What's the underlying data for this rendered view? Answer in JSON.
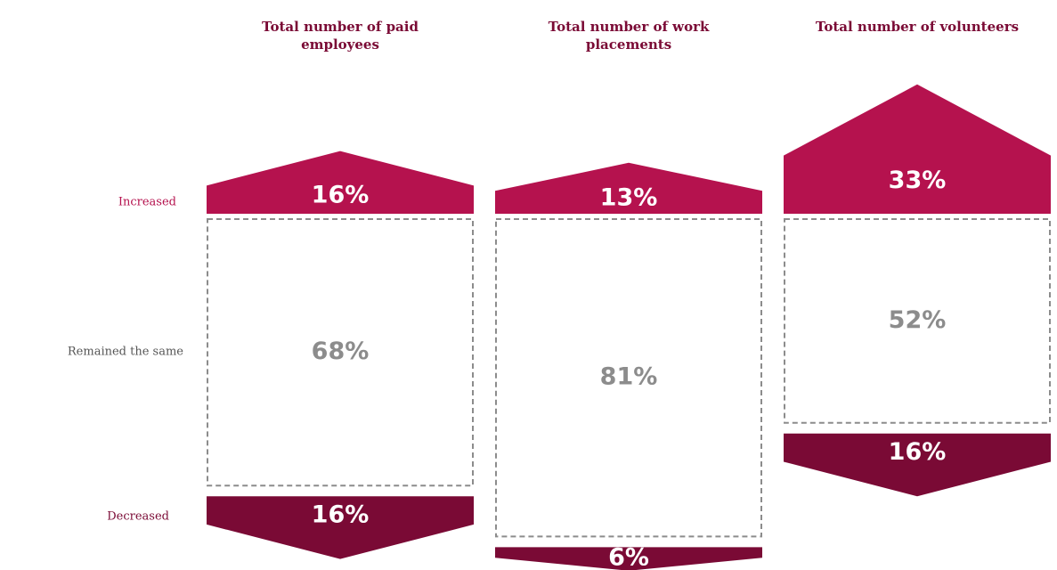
{
  "chart_data": {
    "type": "arrow-stack",
    "categories": [
      "Total number of paid employees",
      "Total number of work placements",
      "Total number of volunteers"
    ],
    "series": [
      {
        "name": "Increased",
        "color": "#b5124e",
        "values": [
          16,
          13,
          33
        ],
        "value_labels": [
          "16%",
          "13%",
          "33%"
        ]
      },
      {
        "name": "Remained the same",
        "color": "#8c8c8c",
        "values": [
          68,
          81,
          52
        ],
        "value_labels": [
          "68%",
          "81%",
          "52%"
        ]
      },
      {
        "name": "Decreased",
        "color": "#7a0a35",
        "values": [
          16,
          6,
          16
        ],
        "value_labels": [
          "16%",
          "6%",
          "16%"
        ]
      }
    ]
  }
}
